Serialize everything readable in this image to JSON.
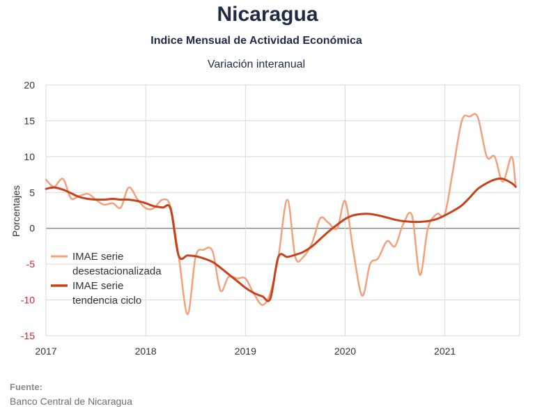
{
  "header": {
    "title": "Nicaragua",
    "subtitle": "Indice Mensual de  Actividad Económica",
    "subtitle2": "Variación interanual"
  },
  "footer": {
    "source_label": "Fuente:",
    "source_value": "Banco Central de Nicaragua"
  },
  "chart_data": {
    "type": "line",
    "title": "Variación interanual",
    "xlabel": "",
    "ylabel": "Porcentajes",
    "xlim": [
      2017.0,
      2021.75
    ],
    "ylim": [
      -15,
      20
    ],
    "yticks": [
      20,
      15,
      10,
      5,
      0,
      -5,
      -10,
      -15
    ],
    "ytick_labels": [
      "20",
      "15",
      "10",
      "5",
      "0",
      "-5",
      "-10",
      "-15"
    ],
    "xticks": [
      2017,
      2018,
      2019,
      2020,
      2021
    ],
    "xtick_labels": [
      "2017",
      "2018",
      "2019",
      "2020",
      "2021"
    ],
    "grid": true,
    "legend_position": "lower-left",
    "series": [
      {
        "name": "IMAE serie desestacionalizada",
        "legend_lines": [
          "IMAE serie",
          "desestacionalizada"
        ],
        "color": "#f4a07a",
        "width": 2.5,
        "x": [
          2017.0,
          2017.08,
          2017.17,
          2017.25,
          2017.33,
          2017.42,
          2017.5,
          2017.58,
          2017.67,
          2017.75,
          2017.83,
          2017.92,
          2018.0,
          2018.08,
          2018.17,
          2018.25,
          2018.33,
          2018.42,
          2018.5,
          2018.58,
          2018.67,
          2018.75,
          2018.83,
          2018.92,
          2019.0,
          2019.08,
          2019.17,
          2019.25,
          2019.33,
          2019.42,
          2019.5,
          2019.58,
          2019.67,
          2019.75,
          2019.83,
          2019.92,
          2020.0,
          2020.08,
          2020.17,
          2020.25,
          2020.33,
          2020.42,
          2020.5,
          2020.58,
          2020.67,
          2020.75,
          2020.83,
          2020.92,
          2021.0,
          2021.08,
          2021.17,
          2021.25,
          2021.33,
          2021.42,
          2021.5,
          2021.58,
          2021.67,
          2021.71
        ],
        "values": [
          6.8,
          5.8,
          6.9,
          4.2,
          4.5,
          4.8,
          4.0,
          3.3,
          3.5,
          2.9,
          5.7,
          4.0,
          2.8,
          2.8,
          4.0,
          3.0,
          -3.8,
          -12.0,
          -4.0,
          -3.0,
          -3.2,
          -8.7,
          -6.8,
          -7.0,
          -7.0,
          -9.0,
          -10.7,
          -9.0,
          -4.0,
          4.0,
          -4.0,
          -4.0,
          -2.0,
          1.4,
          0.8,
          0.0,
          3.8,
          -3.0,
          -9.4,
          -5.0,
          -4.2,
          -1.8,
          -2.5,
          0.5,
          1.8,
          -6.5,
          0.0,
          2.0,
          2.0,
          8.0,
          15.0,
          15.6,
          15.5,
          10.0,
          10.0,
          6.5,
          10.0,
          5.8
        ]
      },
      {
        "name": "IMAE serie tendencia ciclo",
        "legend_lines": [
          "IMAE serie",
          "tendencia ciclo"
        ],
        "color": "#c8411a",
        "width": 3,
        "x": [
          2017.0,
          2017.08,
          2017.17,
          2017.25,
          2017.33,
          2017.42,
          2017.5,
          2017.58,
          2017.67,
          2017.75,
          2017.83,
          2017.92,
          2018.0,
          2018.08,
          2018.17,
          2018.25,
          2018.33,
          2018.42,
          2018.5,
          2018.58,
          2018.67,
          2018.75,
          2018.83,
          2018.92,
          2019.0,
          2019.08,
          2019.17,
          2019.25,
          2019.33,
          2019.42,
          2019.5,
          2019.58,
          2019.67,
          2019.75,
          2019.83,
          2019.92,
          2020.0,
          2020.08,
          2020.17,
          2020.25,
          2020.33,
          2020.42,
          2020.5,
          2020.58,
          2020.67,
          2020.75,
          2020.83,
          2020.92,
          2021.0,
          2021.08,
          2021.17,
          2021.25,
          2021.33,
          2021.42,
          2021.5,
          2021.58,
          2021.67,
          2021.71
        ],
        "values": [
          5.5,
          5.7,
          5.4,
          4.9,
          4.4,
          4.1,
          4.0,
          4.0,
          4.1,
          4.0,
          4.0,
          3.8,
          3.5,
          3.1,
          2.9,
          2.7,
          -3.8,
          -3.8,
          -3.9,
          -4.2,
          -4.7,
          -5.5,
          -6.4,
          -7.4,
          -8.3,
          -9.0,
          -9.5,
          -9.8,
          -4.0,
          -4.0,
          -3.7,
          -3.3,
          -2.5,
          -1.5,
          -0.5,
          0.5,
          1.3,
          1.8,
          2.0,
          2.0,
          1.8,
          1.5,
          1.2,
          1.0,
          0.9,
          0.9,
          1.0,
          1.3,
          1.8,
          2.4,
          3.2,
          4.3,
          5.5,
          6.3,
          6.8,
          6.9,
          6.3,
          5.8
        ]
      }
    ]
  }
}
